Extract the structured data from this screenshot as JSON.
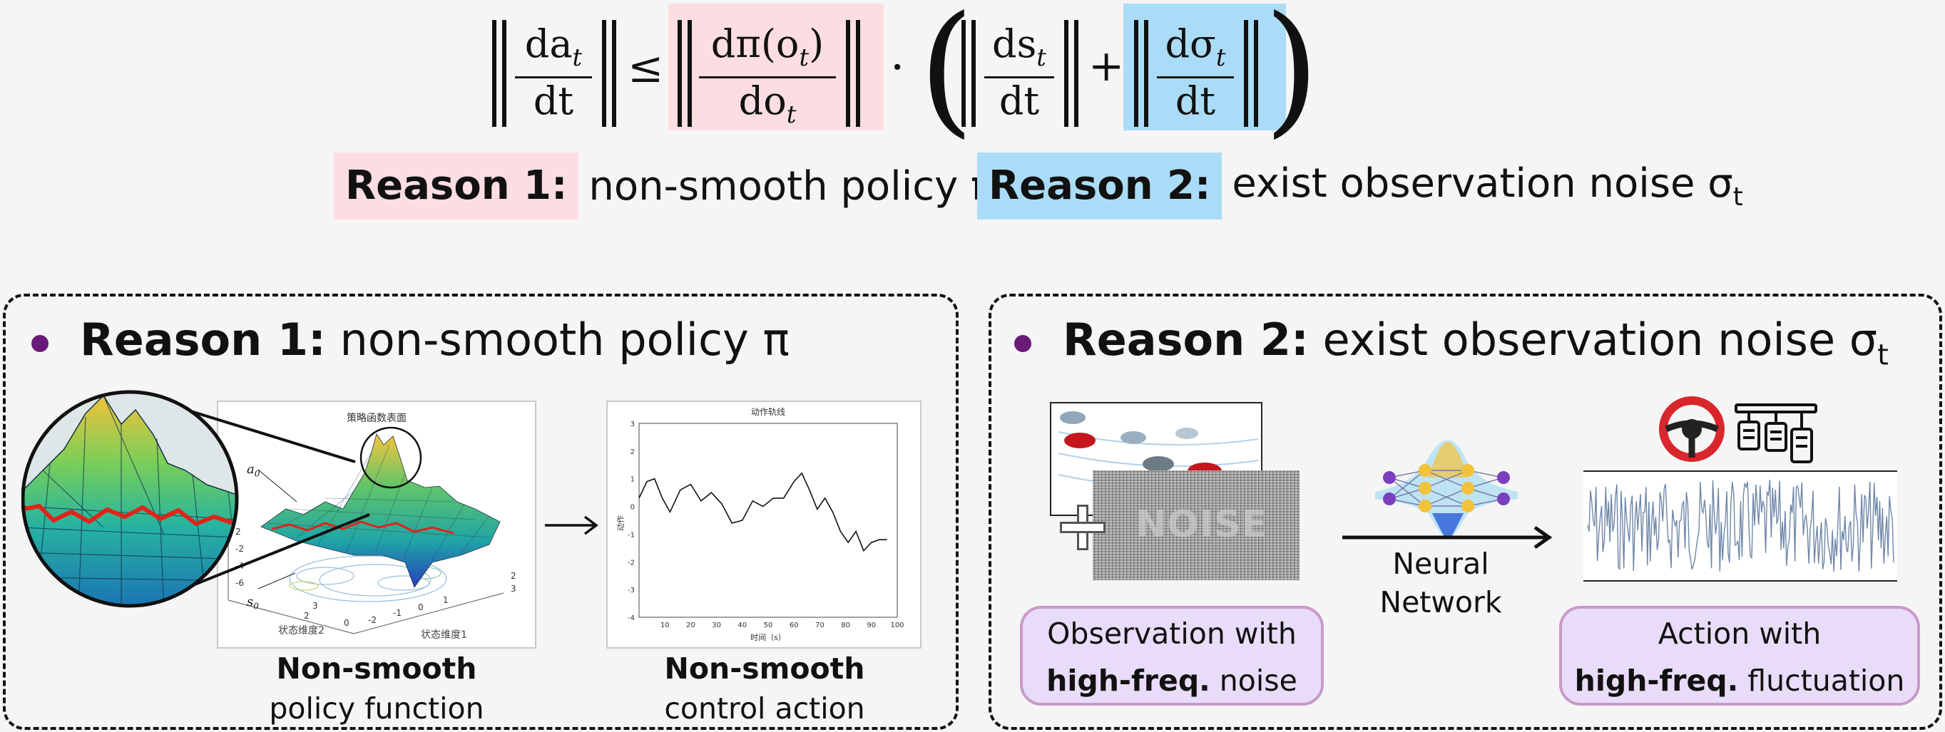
{
  "formula": {
    "lhs_num": "da",
    "lhs_sub": "t",
    "den": "dt",
    "leq": "≤",
    "policy_num": "dπ(o",
    "policy_num_sub": "t",
    "policy_den": "do",
    "policy_den_sub": "t",
    "dot": "·",
    "state_num": "ds",
    "state_sub": "t",
    "plus": "+",
    "noise_num": "dσ",
    "noise_sub": "t"
  },
  "top_reasons": {
    "r1_tag": "Reason 1:",
    "r1_text": "non-smooth policy π",
    "r2_tag": "Reason 2:",
    "r2_text": "exist observation noise σ",
    "r2_sub": "t"
  },
  "panel1": {
    "tag": "Reason 1:",
    "text": "non-smooth policy π",
    "surface_title": "策略函数表面",
    "a0": "a",
    "a0_sub": "0",
    "s0": "s",
    "s0_sub": "0",
    "axis_dim1": "状态维度1",
    "axis_dim2": "状态维度2",
    "caption_left_bold": "Non-smooth",
    "caption_left": "policy function",
    "caption_right_bold": "Non-smooth",
    "caption_right": "control action",
    "action_plot": {
      "title": "动作轨线",
      "ylabel": "动作",
      "xlabel": "时间（s）"
    }
  },
  "panel2": {
    "tag": "Reason 2:",
    "text": "exist observation noise σ",
    "text_sub": "t",
    "noise_label": "NOISE",
    "nn_label_1": "Neural",
    "nn_label_2": "Network",
    "obs_line1": "Observation with",
    "obs_bold": "high-freq.",
    "obs_rest": "noise",
    "act_line1": "Action with",
    "act_bold": "high-freq.",
    "act_rest": "fluctuation"
  },
  "chart_data": {
    "type": "line",
    "title": "动作轨线",
    "xlabel": "时间（s）",
    "ylabel": "动作",
    "xlim": [
      0,
      100
    ],
    "ylim": [
      -4,
      3
    ],
    "xticks": [
      10,
      20,
      30,
      40,
      50,
      60,
      70,
      80,
      90,
      100
    ],
    "yticks": [
      3,
      2,
      1,
      0,
      -1,
      -2,
      -3,
      -4
    ],
    "x": [
      0,
      3,
      6,
      9,
      12,
      16,
      20,
      24,
      28,
      32,
      36,
      40,
      44,
      48,
      52,
      56,
      60,
      63,
      66,
      69,
      72,
      75,
      78,
      81,
      84,
      87,
      90,
      93,
      96
    ],
    "y": [
      0.3,
      0.9,
      1.0,
      0.3,
      -0.2,
      0.6,
      0.8,
      0.2,
      0.5,
      0.1,
      -0.6,
      -0.5,
      0.2,
      0.0,
      0.3,
      0.3,
      0.9,
      1.2,
      0.6,
      -0.1,
      0.3,
      -0.2,
      -0.9,
      -1.3,
      -0.9,
      -1.6,
      -1.3,
      -1.2,
      -1.2
    ]
  },
  "colors": {
    "pink": "#fbdde2",
    "blue": "#abdcf7",
    "purple_box": "#e8dcf9",
    "bullet": "#6a1b7a"
  }
}
